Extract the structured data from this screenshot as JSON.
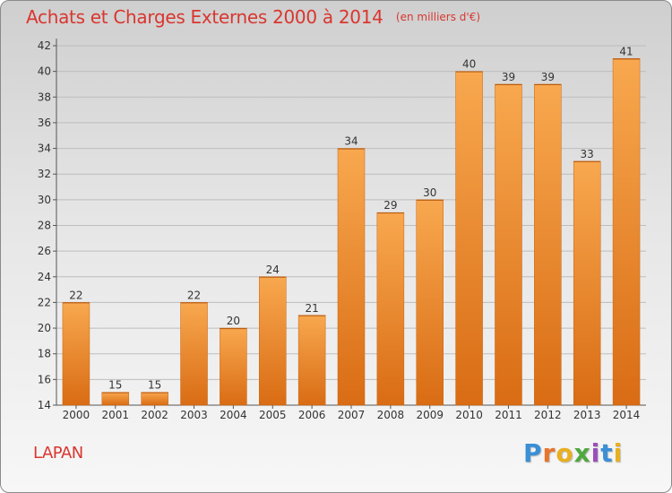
{
  "header": {
    "title": "Achats et Charges Externes 2000 à 2014",
    "unit": "(en milliers d'€)"
  },
  "footer": {
    "commune": "LAPAN",
    "logo": [
      "P",
      "r",
      "o",
      "x",
      "i",
      "t",
      "i"
    ]
  },
  "colors": {
    "title": "#d9362f",
    "bar_light": "#f8a84f",
    "bar_dark": "#d96c14",
    "grid": "#b8b8b8"
  },
  "chart_data": {
    "type": "bar",
    "title": "Achats et Charges Externes 2000 à 2014",
    "categories": [
      "2000",
      "2001",
      "2002",
      "2003",
      "2004",
      "2005",
      "2006",
      "2007",
      "2008",
      "2009",
      "2010",
      "2011",
      "2012",
      "2013",
      "2014"
    ],
    "values": [
      22,
      15,
      15,
      22,
      20,
      24,
      21,
      34,
      29,
      30,
      40,
      39,
      39,
      33,
      41
    ],
    "ylim": [
      14,
      42
    ],
    "yticks": [
      14,
      16,
      18,
      20,
      22,
      24,
      26,
      28,
      30,
      32,
      34,
      36,
      38,
      40,
      42
    ],
    "grid": true,
    "data_labels": true
  }
}
